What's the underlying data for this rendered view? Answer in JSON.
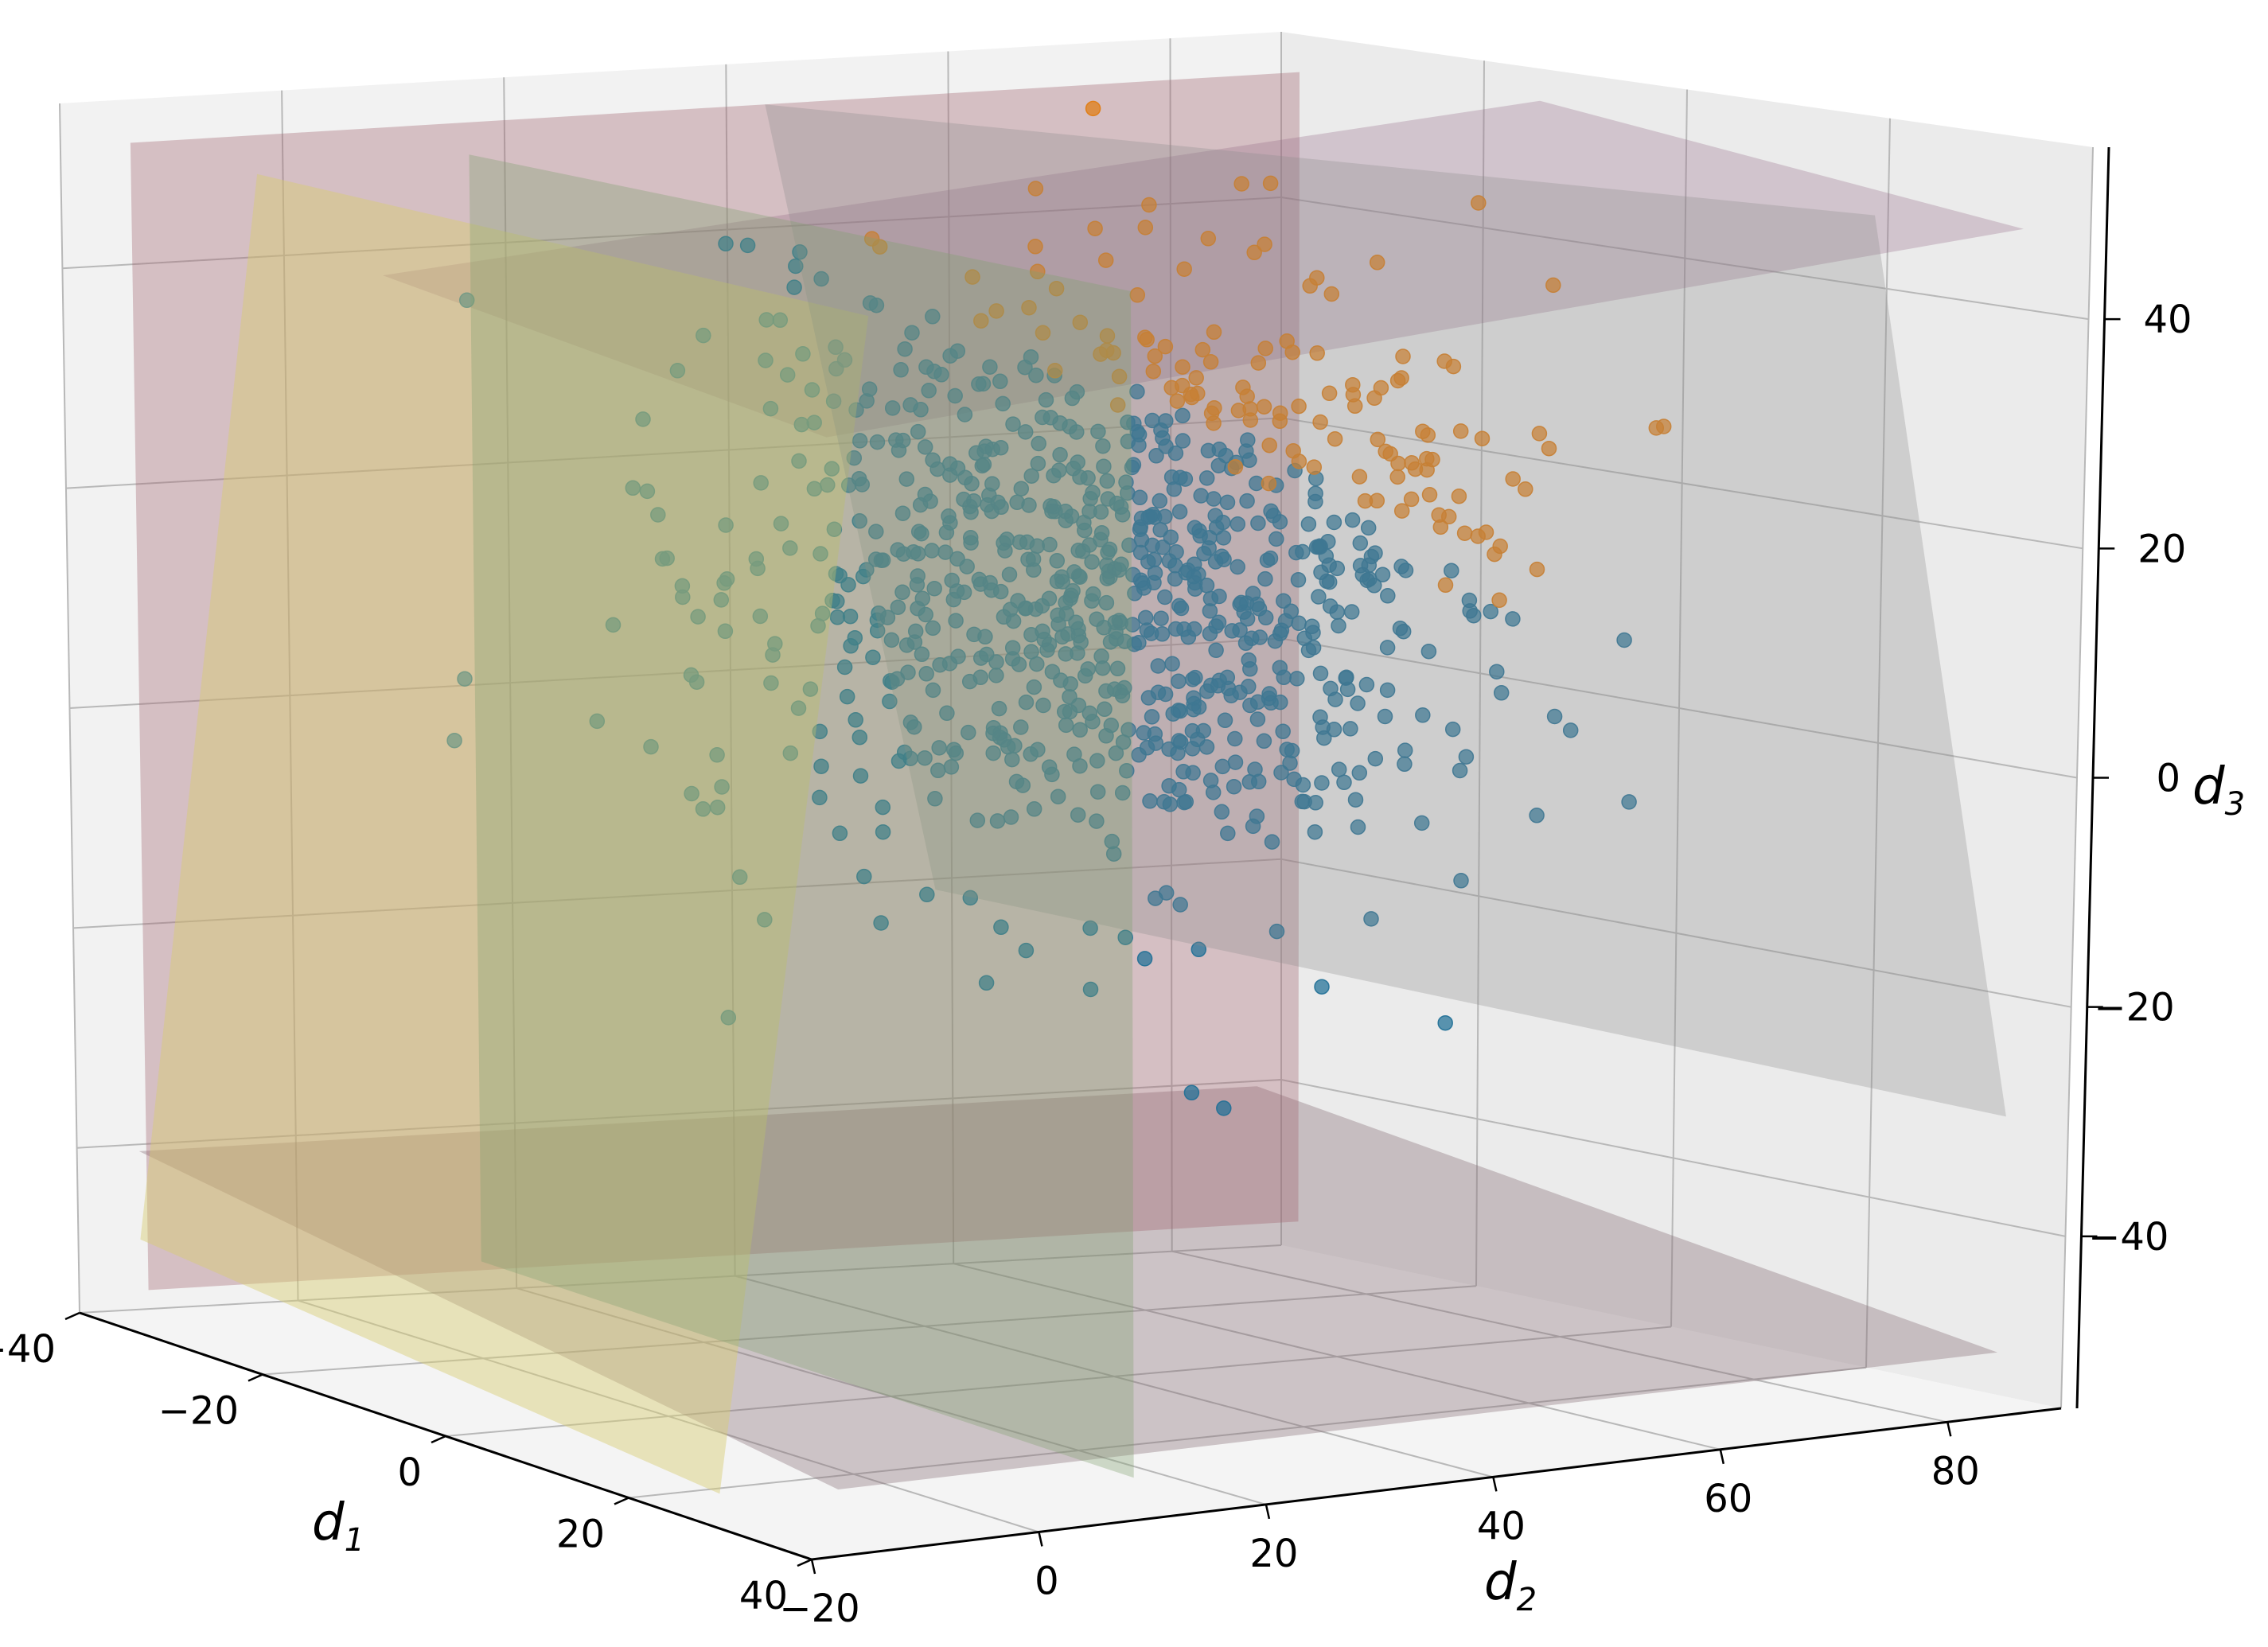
{
  "chart_data": {
    "type": "scatter",
    "title": "",
    "projection": "3d",
    "axes": {
      "x": {
        "label": "d",
        "sub": "1",
        "range": [
          -40,
          40
        ],
        "ticks": [
          "−40",
          "−20",
          "0",
          "20",
          "40"
        ]
      },
      "y": {
        "label": "d",
        "sub": "2",
        "range": [
          -20,
          90
        ],
        "ticks": [
          "−20",
          "0",
          "20",
          "40",
          "60",
          "80"
        ]
      },
      "z": {
        "label": "d",
        "sub": "3",
        "range": [
          -55,
          55
        ],
        "ticks": [
          "−40",
          "−20",
          "0",
          "20",
          "40"
        ]
      }
    },
    "grid": true,
    "legend": "none",
    "series": [
      {
        "color": "#1f6f96",
        "n_points": 900,
        "distribution": "gaussian cluster",
        "center": [
          0,
          40,
          15
        ],
        "spread": 13
      },
      {
        "color": "#e07b10",
        "n_points": 38,
        "distribution": "subset beyond slanted plane",
        "region": "upper-right of cluster"
      }
    ],
    "planes": [
      {
        "kind": "vertical",
        "color": "#a0606e",
        "alpha": 0.35
      },
      {
        "kind": "vertical",
        "color": "#80a070",
        "alpha": 0.35
      },
      {
        "kind": "horizontal-top",
        "color": "#906080",
        "alpha": 0.28
      },
      {
        "kind": "horizontal-bottom",
        "color": "#806870",
        "alpha": 0.35
      },
      {
        "kind": "slanted",
        "color": "#d8cc70",
        "alpha": 0.45
      },
      {
        "kind": "slanted",
        "color": "#8a8a8a",
        "alpha": 0.3
      }
    ],
    "colors": {
      "series_main": "#1f6f96",
      "series_outliers": "#e07b10"
    }
  }
}
